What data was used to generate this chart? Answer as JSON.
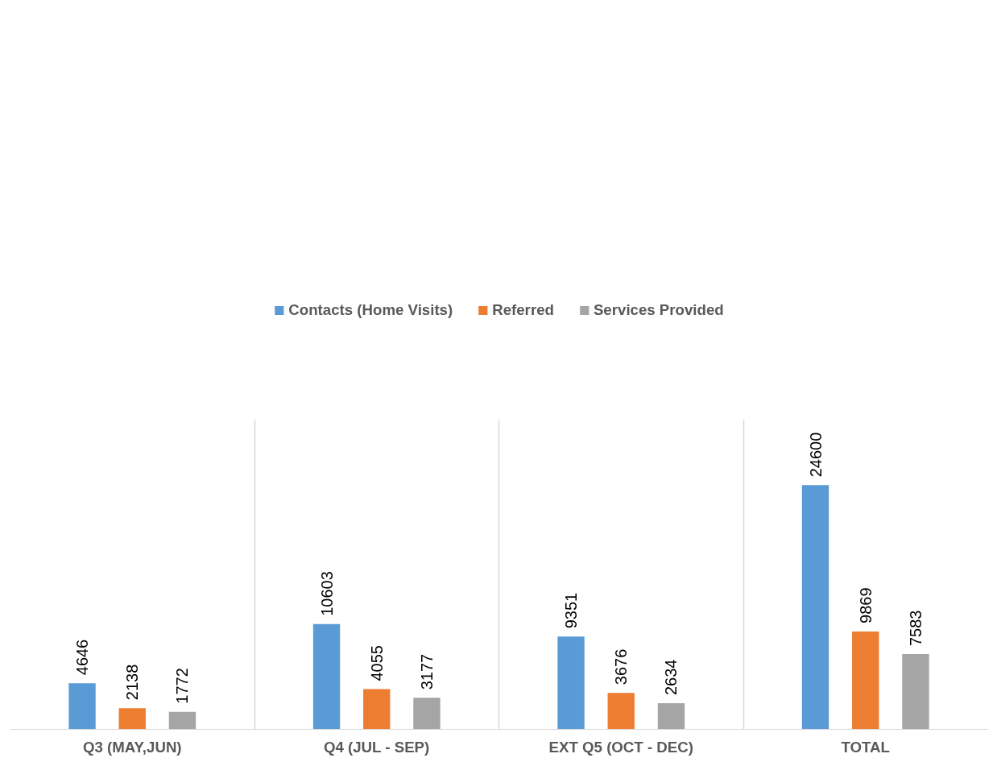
{
  "chart_data": {
    "type": "bar",
    "categories": [
      "Q3 (MAY,JUN)",
      "Q4 (JUL - SEP)",
      "EXT Q5 (OCT - DEC)",
      "TOTAL"
    ],
    "series": [
      {
        "name": "Contacts (Home Visits)",
        "color": "#5b9bd5",
        "values": [
          4646,
          10603,
          9351,
          24600
        ]
      },
      {
        "name": "Referred",
        "color": "#ed7d31",
        "values": [
          2138,
          4055,
          3676,
          9869
        ]
      },
      {
        "name": "Services Provided",
        "color": "#a5a5a5",
        "values": [
          1772,
          3177,
          2634,
          7583
        ]
      }
    ],
    "data_labels": true,
    "legend": "top",
    "grid": "x"
  }
}
